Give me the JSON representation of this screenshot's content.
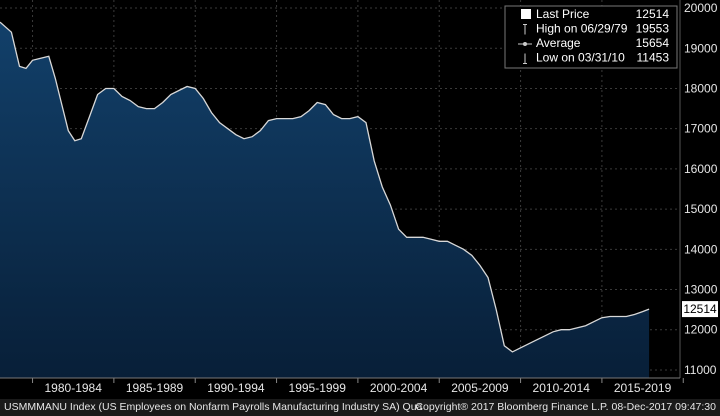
{
  "chart_data": {
    "type": "area",
    "x_tick_labels": [
      "1980-1984",
      "1985-1989",
      "1990-1994",
      "1995-1999",
      "2000-2004",
      "2005-2009",
      "2010-2014",
      "2015-2019"
    ],
    "y_ticks": [
      11000,
      12000,
      13000,
      14000,
      15000,
      16000,
      17000,
      18000,
      19000,
      20000
    ],
    "ylim": [
      10800,
      20200
    ],
    "xlim": [
      1978.0,
      2019.8
    ],
    "grid": true,
    "legend_position": "top-right",
    "series": [
      {
        "values_x": [
          1978.0,
          1978.7,
          1979.2,
          1979.6,
          1980.0,
          1980.5,
          1981.0,
          1981.4,
          1981.8,
          1982.2,
          1982.6,
          1983.0,
          1983.5,
          1984.0,
          1984.5,
          1985.0,
          1985.5,
          1986.0,
          1986.5,
          1987.0,
          1987.5,
          1988.0,
          1988.5,
          1989.0,
          1989.5,
          1990.0,
          1990.5,
          1991.0,
          1991.5,
          1992.0,
          1992.5,
          1993.0,
          1993.5,
          1994.0,
          1994.5,
          1995.0,
          1995.5,
          1996.0,
          1996.5,
          1997.0,
          1997.5,
          1998.0,
          1998.5,
          1999.0,
          1999.5,
          2000.0,
          2000.5,
          2001.0,
          2001.5,
          2002.0,
          2002.5,
          2003.0,
          2003.5,
          2004.0,
          2004.5,
          2005.0,
          2005.5,
          2006.0,
          2006.5,
          2007.0,
          2007.5,
          2008.0,
          2008.5,
          2009.0,
          2009.5,
          2010.0,
          2010.5,
          2011.0,
          2011.5,
          2012.0,
          2012.5,
          2013.0,
          2013.5,
          2014.0,
          2014.5,
          2015.0,
          2015.5,
          2016.0,
          2016.5,
          2017.0,
          2017.5,
          2017.9
        ],
        "values_y": [
          19650,
          19400,
          18550,
          18500,
          18700,
          18750,
          18800,
          18250,
          17600,
          16950,
          16700,
          16750,
          17300,
          17850,
          18000,
          18000,
          17800,
          17700,
          17550,
          17500,
          17500,
          17650,
          17850,
          17950,
          18050,
          18000,
          17750,
          17400,
          17150,
          17000,
          16850,
          16750,
          16800,
          16950,
          17200,
          17250,
          17250,
          17250,
          17300,
          17450,
          17650,
          17600,
          17350,
          17250,
          17250,
          17300,
          17150,
          16200,
          15550,
          15100,
          14500,
          14300,
          14300,
          14300,
          14250,
          14200,
          14200,
          14100,
          14000,
          13850,
          13600,
          13300,
          12500,
          11600,
          11450,
          11550,
          11650,
          11750,
          11850,
          11950,
          12000,
          12000,
          12050,
          12100,
          12200,
          12300,
          12330,
          12330,
          12330,
          12380,
          12450,
          12514
        ]
      }
    ],
    "legend": {
      "items": [
        {
          "label": "Last Price",
          "value": "12514",
          "marker": "square"
        },
        {
          "label": "High on 06/29/79",
          "value": "19553",
          "marker": "high"
        },
        {
          "label": "Average",
          "value": "15654",
          "marker": "average"
        },
        {
          "label": "Low on 03/31/10",
          "value": "11453",
          "marker": "low"
        }
      ]
    },
    "last_value_label": "12514",
    "colors": {
      "background": "#000000",
      "area_fill_top": "#0f3a5e",
      "area_fill_bottom": "#0a2540",
      "line": "#d8d8d8",
      "last_badge_bg": "#ffffff",
      "last_badge_text": "#000000",
      "axis_text": "#e6e6e6"
    }
  },
  "footer": {
    "left_text": "USMMMANU Index (US Employees on Nonfarm Payrolls Manufacturing Industry SA)  Qua",
    "right_text": "Copyright® 2017 Bloomberg Finance L.P.    08-Dec-2017  09:47:30"
  }
}
